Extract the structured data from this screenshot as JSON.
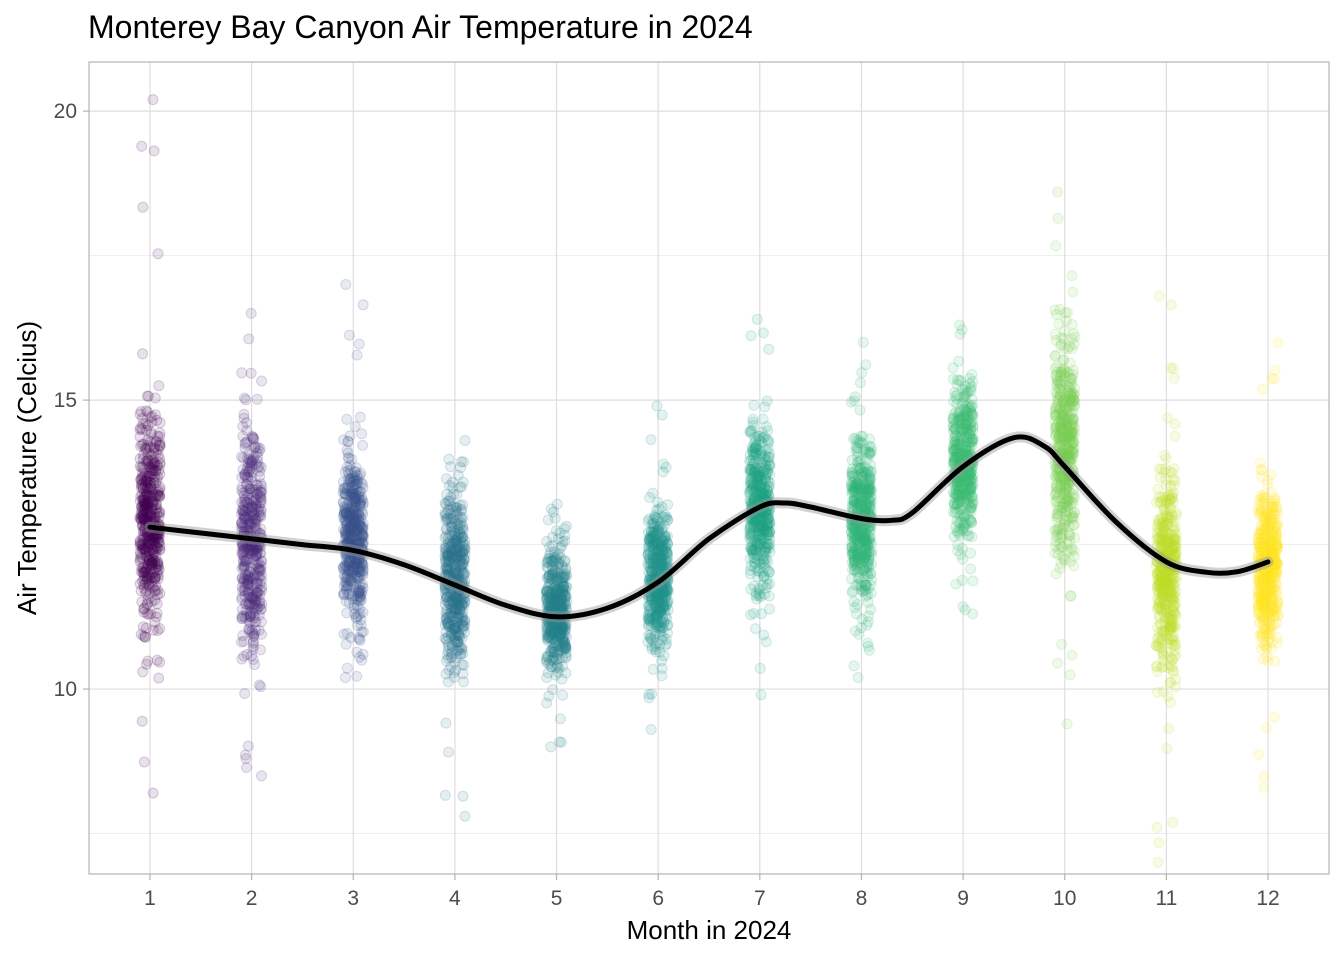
{
  "chart_data": {
    "type": "scatter",
    "title": "Monterey Bay Canyon Air Temperature in 2024",
    "xlabel": "Month in 2024",
    "ylabel": "Air Temperature (Celcius)",
    "x_ticks": [
      "1",
      "2",
      "3",
      "4",
      "5",
      "6",
      "7",
      "8",
      "9",
      "10",
      "11",
      "12"
    ],
    "y_ticks": [
      "10",
      "15",
      "20"
    ],
    "xlim": [
      0.4,
      12.6
    ],
    "ylim": [
      6.8,
      20.85
    ],
    "grid": true,
    "jitter_width": 0.1,
    "point_alpha": 0.12,
    "month_colors": [
      "#440154",
      "#482878",
      "#3E4A89",
      "#31688E",
      "#26828E",
      "#1F9E89",
      "#35B779",
      "#6DCD59",
      "#B4DE2C",
      "#FDE725"
    ],
    "months": [
      {
        "month": 1,
        "color": "#440154",
        "median": 12.9,
        "q1": 11.7,
        "q3": 13.9,
        "min": 8.2,
        "max": 20.2,
        "n": 480
      },
      {
        "month": 2,
        "color": "#472A7A",
        "median": 12.5,
        "q1": 11.3,
        "q3": 13.6,
        "min": 8.5,
        "max": 16.5,
        "n": 440
      },
      {
        "month": 3,
        "color": "#3B528B",
        "median": 12.6,
        "q1": 11.8,
        "q3": 13.5,
        "min": 10.2,
        "max": 17.0,
        "n": 480
      },
      {
        "month": 4,
        "color": "#2C728E",
        "median": 11.9,
        "q1": 11.0,
        "q3": 12.8,
        "min": 7.8,
        "max": 14.3,
        "n": 460
      },
      {
        "month": 5,
        "color": "#26828E",
        "median": 11.3,
        "q1": 10.7,
        "q3": 11.9,
        "min": 9.0,
        "max": 13.2,
        "n": 480
      },
      {
        "month": 6,
        "color": "#21918C",
        "median": 11.9,
        "q1": 11.2,
        "q3": 12.6,
        "min": 9.3,
        "max": 14.9,
        "n": 460
      },
      {
        "month": 7,
        "color": "#1FA187",
        "median": 13.1,
        "q1": 12.3,
        "q3": 13.9,
        "min": 9.9,
        "max": 16.4,
        "n": 480
      },
      {
        "month": 8,
        "color": "#35B779",
        "median": 12.9,
        "q1": 12.1,
        "q3": 13.7,
        "min": 10.2,
        "max": 16.0,
        "n": 480
      },
      {
        "month": 9,
        "color": "#3DBC74",
        "median": 13.9,
        "q1": 13.1,
        "q3": 14.7,
        "min": 11.3,
        "max": 16.3,
        "n": 460
      },
      {
        "month": 10,
        "color": "#7AD151",
        "median": 14.1,
        "q1": 13.0,
        "q3": 15.2,
        "min": 9.4,
        "max": 18.6,
        "n": 480
      },
      {
        "month": 11,
        "color": "#BBDF27",
        "median": 12.0,
        "q1": 11.0,
        "q3": 13.0,
        "min": 7.0,
        "max": 16.8,
        "n": 460
      },
      {
        "month": 12,
        "color": "#FDE725",
        "median": 12.1,
        "q1": 11.3,
        "q3": 12.9,
        "min": 8.3,
        "max": 16.0,
        "n": 480
      }
    ],
    "smooth": {
      "color": "#000000",
      "x": [
        1,
        1.5,
        2,
        2.5,
        3,
        3.5,
        4,
        4.5,
        5,
        5.5,
        6,
        6.5,
        7,
        7.25,
        7.5,
        8,
        8.3,
        8.5,
        9,
        9.5,
        9.8,
        10,
        10.5,
        11,
        11.4,
        11.7,
        12
      ],
      "y": [
        12.8,
        12.7,
        12.6,
        12.5,
        12.4,
        12.15,
        11.8,
        11.45,
        11.25,
        11.4,
        11.85,
        12.6,
        13.15,
        13.22,
        13.15,
        12.95,
        12.92,
        13.05,
        13.85,
        14.35,
        14.2,
        13.85,
        12.9,
        12.2,
        12.02,
        12.03,
        12.2
      ]
    }
  }
}
